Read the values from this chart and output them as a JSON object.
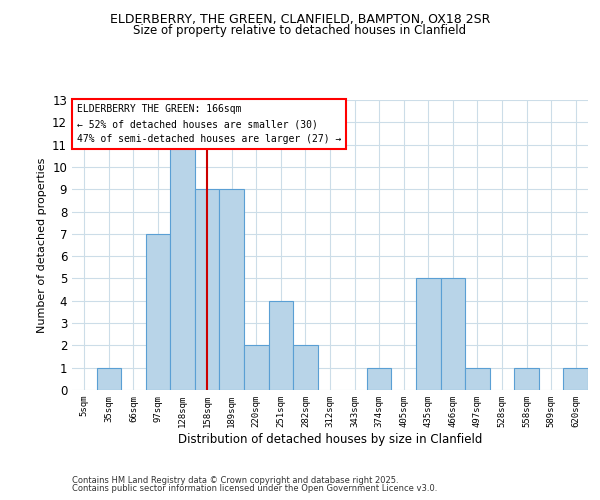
{
  "title1": "ELDERBERRY, THE GREEN, CLANFIELD, BAMPTON, OX18 2SR",
  "title2": "Size of property relative to detached houses in Clanfield",
  "xlabel": "Distribution of detached houses by size in Clanfield",
  "ylabel": "Number of detached properties",
  "categories": [
    "5sqm",
    "35sqm",
    "66sqm",
    "97sqm",
    "128sqm",
    "158sqm",
    "189sqm",
    "220sqm",
    "251sqm",
    "282sqm",
    "312sqm",
    "343sqm",
    "374sqm",
    "405sqm",
    "435sqm",
    "466sqm",
    "497sqm",
    "528sqm",
    "558sqm",
    "589sqm",
    "620sqm"
  ],
  "values": [
    0,
    1,
    0,
    7,
    11,
    9,
    9,
    2,
    4,
    2,
    0,
    0,
    1,
    0,
    5,
    5,
    1,
    0,
    1,
    0,
    1
  ],
  "bar_color": "#b8d4e8",
  "bar_edge_color": "#5a9fd4",
  "highlight_index": 5,
  "highlight_color": "#cc0000",
  "ylim": [
    0,
    13
  ],
  "yticks": [
    0,
    1,
    2,
    3,
    4,
    5,
    6,
    7,
    8,
    9,
    10,
    11,
    12,
    13
  ],
  "annotation_box_text": "ELDERBERRY THE GREEN: 166sqm\n← 52% of detached houses are smaller (30)\n47% of semi-detached houses are larger (27) →",
  "footnote1": "Contains HM Land Registry data © Crown copyright and database right 2025.",
  "footnote2": "Contains public sector information licensed under the Open Government Licence v3.0.",
  "background_color": "#ffffff",
  "grid_color": "#ccdde8"
}
